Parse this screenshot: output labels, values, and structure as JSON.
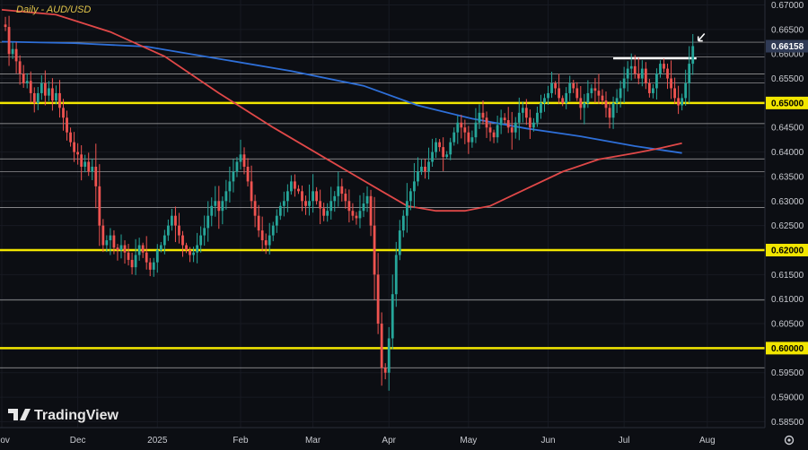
{
  "chart_data": {
    "type": "candlestick",
    "title": "Daily - AUD/USD",
    "y_axis": {
      "range": [
        0.5838,
        0.671
      ],
      "ticks": [
        "0.67000",
        "0.66500",
        "0.66000",
        "0.65500",
        "0.64500",
        "0.64000",
        "0.63500",
        "0.63000",
        "0.62500",
        "0.61500",
        "0.61000",
        "0.60500",
        "0.59500",
        "0.59000",
        "0.58500"
      ],
      "highlighted": [
        {
          "value": "0.66158",
          "color": "#2f3a55",
          "text": "#ffffff"
        },
        {
          "value": "0.65000",
          "color": "#f2e600",
          "text": "#000000"
        },
        {
          "value": "0.62000",
          "color": "#f2e600",
          "text": "#000000"
        },
        {
          "value": "0.60000",
          "color": "#f2e600",
          "text": "#000000"
        }
      ]
    },
    "x_axis": {
      "labels": [
        {
          "label": "Nov",
          "day": 0
        },
        {
          "label": "Dec",
          "day": 21
        },
        {
          "label": "2025",
          "day": 43
        },
        {
          "label": "Feb",
          "day": 66
        },
        {
          "label": "Mar",
          "day": 86
        },
        {
          "label": "Apr",
          "day": 107
        },
        {
          "label": "May",
          "day": 129
        },
        {
          "label": "Jun",
          "day": 151
        },
        {
          "label": "Jul",
          "day": 172
        },
        {
          "label": "Aug",
          "day": 195
        }
      ]
    },
    "key_levels_yellow": [
      0.65,
      0.62,
      0.6
    ],
    "horizontal_lines_white": [
      0.6624,
      0.6594,
      0.6559,
      0.6541,
      0.6458,
      0.6386,
      0.636,
      0.6287,
      0.6098,
      0.596
    ],
    "resistance_segment": {
      "value": 0.6591,
      "from_day": 169,
      "to_day": 192
    },
    "last_price": 0.66158,
    "ma_red": {
      "days": [
        0,
        15,
        30,
        45,
        60,
        75,
        90,
        105,
        112,
        120,
        128,
        135,
        145,
        155,
        165,
        175,
        182,
        188
      ],
      "values": [
        0.669,
        0.668,
        0.6645,
        0.6595,
        0.652,
        0.645,
        0.6385,
        0.632,
        0.629,
        0.628,
        0.628,
        0.629,
        0.6325,
        0.636,
        0.6385,
        0.6398,
        0.6408,
        0.6418
      ]
    },
    "ma_blue": {
      "days": [
        0,
        20,
        40,
        60,
        80,
        100,
        115,
        130,
        145,
        160,
        175,
        188
      ],
      "values": [
        0.6625,
        0.6622,
        0.6615,
        0.659,
        0.6565,
        0.6535,
        0.6495,
        0.6468,
        0.6448,
        0.6432,
        0.6412,
        0.6398
      ]
    },
    "candles": {
      "colors": {
        "up": "#26a69a",
        "down": "#ef5350"
      },
      "closes": [
        0.666,
        0.6655,
        0.66,
        0.661,
        0.6585,
        0.656,
        0.654,
        0.6545,
        0.652,
        0.65,
        0.652,
        0.654,
        0.6515,
        0.653,
        0.6505,
        0.652,
        0.649,
        0.647,
        0.644,
        0.642,
        0.64,
        0.6395,
        0.637,
        0.638,
        0.636,
        0.637,
        0.633,
        0.625,
        0.621,
        0.622,
        0.623,
        0.6205,
        0.62,
        0.621,
        0.6195,
        0.618,
        0.6165,
        0.619,
        0.621,
        0.6195,
        0.6175,
        0.616,
        0.6175,
        0.62,
        0.621,
        0.623,
        0.625,
        0.627,
        0.625,
        0.623,
        0.621,
        0.62,
        0.619,
        0.6195,
        0.621,
        0.623,
        0.6245,
        0.627,
        0.629,
        0.63,
        0.628,
        0.63,
        0.632,
        0.634,
        0.636,
        0.638,
        0.6395,
        0.637,
        0.634,
        0.63,
        0.627,
        0.624,
        0.622,
        0.621,
        0.623,
        0.625,
        0.627,
        0.629,
        0.63,
        0.632,
        0.634,
        0.6325,
        0.632,
        0.63,
        0.629,
        0.63,
        0.632,
        0.63,
        0.6285,
        0.627,
        0.628,
        0.63,
        0.631,
        0.633,
        0.6315,
        0.63,
        0.628,
        0.627,
        0.6265,
        0.628,
        0.6295,
        0.631,
        0.625,
        0.615,
        0.605,
        0.596,
        0.595,
        0.602,
        0.611,
        0.619,
        0.624,
        0.627,
        0.63,
        0.632,
        0.634,
        0.636,
        0.637,
        0.636,
        0.638,
        0.64,
        0.642,
        0.641,
        0.639,
        0.6395,
        0.642,
        0.644,
        0.646,
        0.645,
        0.644,
        0.642,
        0.643,
        0.646,
        0.648,
        0.647,
        0.645,
        0.644,
        0.643,
        0.6455,
        0.647,
        0.6465,
        0.645,
        0.644,
        0.646,
        0.648,
        0.649,
        0.647,
        0.645,
        0.646,
        0.648,
        0.65,
        0.651,
        0.652,
        0.654,
        0.653,
        0.651,
        0.65,
        0.652,
        0.654,
        0.653,
        0.651,
        0.649,
        0.65,
        0.652,
        0.653,
        0.6525,
        0.6515,
        0.6505,
        0.649,
        0.647,
        0.65,
        0.651,
        0.653,
        0.655,
        0.657,
        0.6575,
        0.656,
        0.655,
        0.657,
        0.654,
        0.652,
        0.653,
        0.656,
        0.658,
        0.657,
        0.655,
        0.653,
        0.651,
        0.6495,
        0.651,
        0.654,
        0.658,
        0.6616
      ]
    }
  },
  "brand": {
    "text": "TradingView"
  },
  "axis_icon": "settings-gear-icon"
}
